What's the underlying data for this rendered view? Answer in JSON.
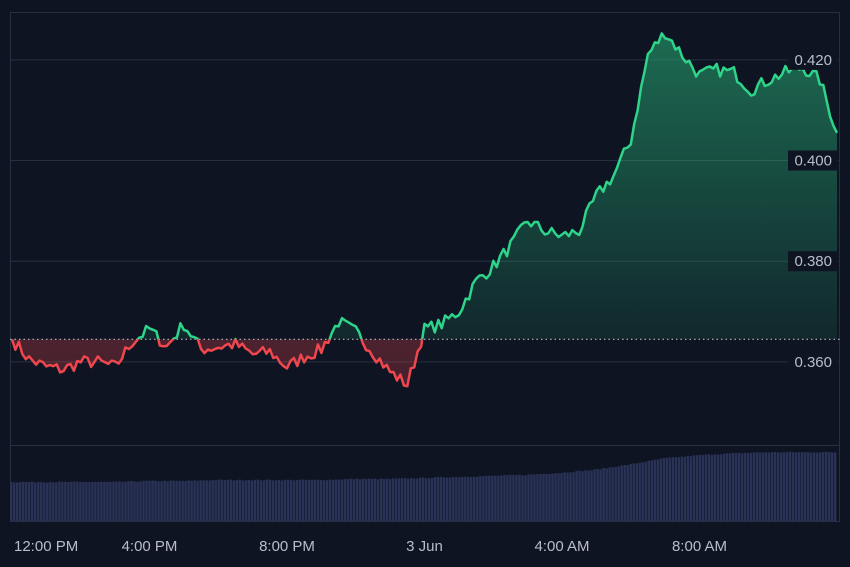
{
  "chart_data": {
    "type": "area",
    "baseline": 0.3645,
    "ylim": [
      0.3435,
      0.4295
    ],
    "y_ticks": [
      0.36,
      0.38,
      0.4,
      0.42
    ],
    "y_tick_labels": [
      "0.360",
      "0.380",
      "0.400",
      "0.420"
    ],
    "x_tick_labels": [
      "12:00 PM",
      "4:00 PM",
      "8:00 PM",
      "3 Jun",
      "4:00 AM",
      "8:00 AM"
    ],
    "series": [
      {
        "x_hours": [
          0,
          0.5,
          1,
          1.5,
          2,
          2.5,
          3,
          3.5,
          4,
          4.5,
          5,
          5.5,
          6,
          6.5,
          7,
          7.5,
          8,
          8.5,
          9,
          9.5,
          10,
          10.5,
          11,
          11.5,
          12,
          12.5,
          13,
          13.5,
          14,
          14.5,
          15,
          15.5,
          16,
          16.5,
          17,
          17.5,
          18,
          18.5,
          19,
          19.5,
          20,
          20.5,
          21,
          21.5,
          22,
          22.5,
          23,
          23.5,
          24
        ],
        "values": [
          0.3645,
          0.3605,
          0.359,
          0.3585,
          0.36,
          0.36,
          0.359,
          0.364,
          0.3665,
          0.363,
          0.3675,
          0.3625,
          0.363,
          0.3635,
          0.3615,
          0.362,
          0.359,
          0.361,
          0.3625,
          0.368,
          0.366,
          0.362,
          0.358,
          0.3555,
          0.3665,
          0.3675,
          0.37,
          0.376,
          0.379,
          0.383,
          0.388,
          0.386,
          0.385,
          0.386,
          0.393,
          0.397,
          0.404,
          0.421,
          0.4255,
          0.421,
          0.417,
          0.418,
          0.4175,
          0.414,
          0.416,
          0.4175,
          0.4185,
          0.416,
          0.4055
        ]
      }
    ],
    "volume": {
      "x_hours": [
        0,
        1,
        2,
        3,
        4,
        5,
        6,
        7,
        8,
        9,
        10,
        11,
        12,
        13,
        14,
        15,
        16,
        17,
        18,
        19,
        20,
        21,
        22,
        23,
        24
      ],
      "values": [
        0.38,
        0.38,
        0.38,
        0.38,
        0.39,
        0.39,
        0.4,
        0.4,
        0.4,
        0.4,
        0.41,
        0.41,
        0.42,
        0.43,
        0.44,
        0.45,
        0.47,
        0.5,
        0.55,
        0.61,
        0.64,
        0.66,
        0.67,
        0.67,
        0.67
      ]
    },
    "colors": {
      "up": "#2ed48a",
      "down": "#f0474f",
      "volume": "#2a3357",
      "grid": "#273042"
    }
  }
}
